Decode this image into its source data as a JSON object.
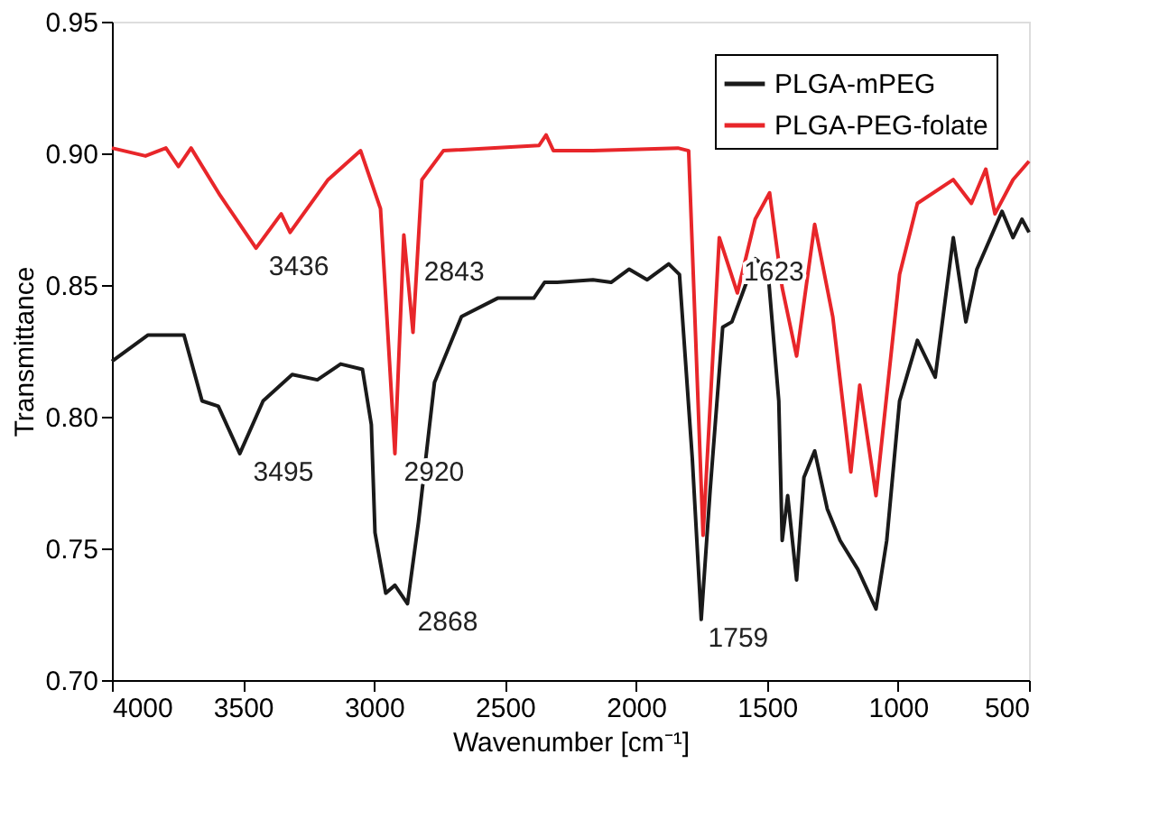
{
  "chart_data": {
    "type": "line",
    "xlabel": "Wavenumber [cm⁻¹]",
    "ylabel": "Transmittance",
    "xlim": [
      4000,
      500
    ],
    "xticks": [
      4000,
      3500,
      3000,
      2500,
      2000,
      1500,
      1000,
      500
    ],
    "ylim": [
      0.7,
      0.95
    ],
    "yticks": [
      {
        "value": 0.7,
        "label": "0.70"
      },
      {
        "value": 0.75,
        "label": "0.75"
      },
      {
        "value": 0.8,
        "label": "0.80"
      },
      {
        "value": 0.85,
        "label": "0.85"
      },
      {
        "value": 0.9,
        "label": "0.90"
      },
      {
        "value": 0.95,
        "label": "0.95"
      }
    ],
    "legend": "top right",
    "grid": false,
    "marker": "none",
    "line_style": "solid",
    "series": [
      {
        "name": "PLGA-mPEG",
        "color": "#1a1a1a",
        "x": [
          4000,
          3862,
          3725,
          3656,
          3594,
          3512,
          3423,
          3312,
          3216,
          3127,
          3044,
          3010,
          2996,
          2955,
          2920,
          2872,
          2830,
          2769,
          2666,
          2528,
          2390,
          2349,
          2301,
          2164,
          2095,
          2026,
          1957,
          1875,
          1834,
          1785,
          1751,
          1717,
          1669,
          1634,
          1593,
          1545,
          1497,
          1455,
          1442,
          1421,
          1387,
          1359,
          1318,
          1270,
          1221,
          1153,
          1084,
          1043,
          994,
          926,
          858,
          789,
          741,
          699,
          603,
          561,
          527,
          500
        ],
        "values": [
          0.821,
          0.831,
          0.831,
          0.806,
          0.804,
          0.786,
          0.806,
          0.816,
          0.814,
          0.82,
          0.818,
          0.797,
          0.756,
          0.733,
          0.736,
          0.729,
          0.76,
          0.813,
          0.838,
          0.845,
          0.845,
          0.851,
          0.851,
          0.852,
          0.851,
          0.856,
          0.852,
          0.858,
          0.854,
          0.784,
          0.723,
          0.772,
          0.834,
          0.836,
          0.847,
          0.86,
          0.856,
          0.806,
          0.753,
          0.77,
          0.738,
          0.777,
          0.787,
          0.765,
          0.753,
          0.742,
          0.727,
          0.753,
          0.806,
          0.829,
          0.815,
          0.868,
          0.836,
          0.856,
          0.878,
          0.868,
          0.875,
          0.87
        ]
      },
      {
        "name": "PLGA-PEG-folate",
        "color": "#e8262a",
        "x": [
          4000,
          3872,
          3794,
          3746,
          3698,
          3587,
          3450,
          3354,
          3320,
          3175,
          3051,
          2975,
          2920,
          2886,
          2851,
          2817,
          2735,
          2370,
          2343,
          2315,
          2164,
          1840,
          1799,
          1744,
          1682,
          1613,
          1545,
          1490,
          1442,
          1387,
          1318,
          1249,
          1180,
          1146,
          1084,
          994,
          926,
          789,
          720,
          665,
          630,
          561,
          500
        ],
        "values": [
          0.902,
          0.899,
          0.902,
          0.895,
          0.902,
          0.884,
          0.864,
          0.877,
          0.87,
          0.89,
          0.901,
          0.879,
          0.786,
          0.869,
          0.832,
          0.89,
          0.901,
          0.903,
          0.907,
          0.901,
          0.901,
          0.902,
          0.901,
          0.755,
          0.868,
          0.847,
          0.875,
          0.885,
          0.849,
          0.823,
          0.873,
          0.838,
          0.779,
          0.812,
          0.77,
          0.854,
          0.881,
          0.89,
          0.881,
          0.894,
          0.877,
          0.89,
          0.897
        ]
      }
    ],
    "annotations": [
      {
        "text": "3436",
        "x": 3436,
        "y": 0.864
      },
      {
        "text": "2843",
        "x": 2843,
        "y": 0.862
      },
      {
        "text": "2920",
        "x": 2920,
        "y": 0.786
      },
      {
        "text": "3495",
        "x": 3495,
        "y": 0.786
      },
      {
        "text": "2868",
        "x": 2868,
        "y": 0.729
      },
      {
        "text": "1759",
        "x": 1759,
        "y": 0.723
      },
      {
        "text": "1623",
        "x": 1623,
        "y": 0.862
      }
    ]
  }
}
